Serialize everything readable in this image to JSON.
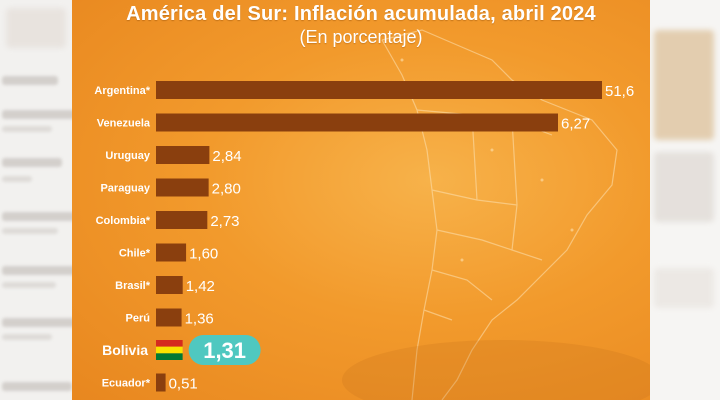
{
  "chart_data": {
    "type": "bar",
    "orientation": "horizontal",
    "title": "América del Sur: Inflación acumulada, abril 2024",
    "subtitle": "(En porcentaje)",
    "categories": [
      "Argentina*",
      "Venezuela",
      "Uruguay",
      "Paraguay",
      "Colombia*",
      "Chile*",
      "Brasil*",
      "Perú",
      "Bolivia",
      "Ecuador*"
    ],
    "values": [
      51.6,
      6.27,
      2.84,
      2.8,
      2.73,
      1.6,
      1.42,
      1.36,
      1.31,
      0.51
    ],
    "value_labels": [
      "51,6",
      "6,27",
      "2,84",
      "2,80",
      "2,73",
      "1,60",
      "1,42",
      "1,36",
      "1,31",
      "0,51"
    ],
    "highlight": "Bolivia",
    "highlight_colors": [
      "#d52b1e",
      "#f9e300",
      "#007934"
    ],
    "bar_color": "#8a3f0e",
    "highlight_badge_color": "#4fc8c0",
    "background_color": "#f29a2c",
    "note": "Argentina and Venezuela bars are drawn truncated (not to scale)"
  }
}
